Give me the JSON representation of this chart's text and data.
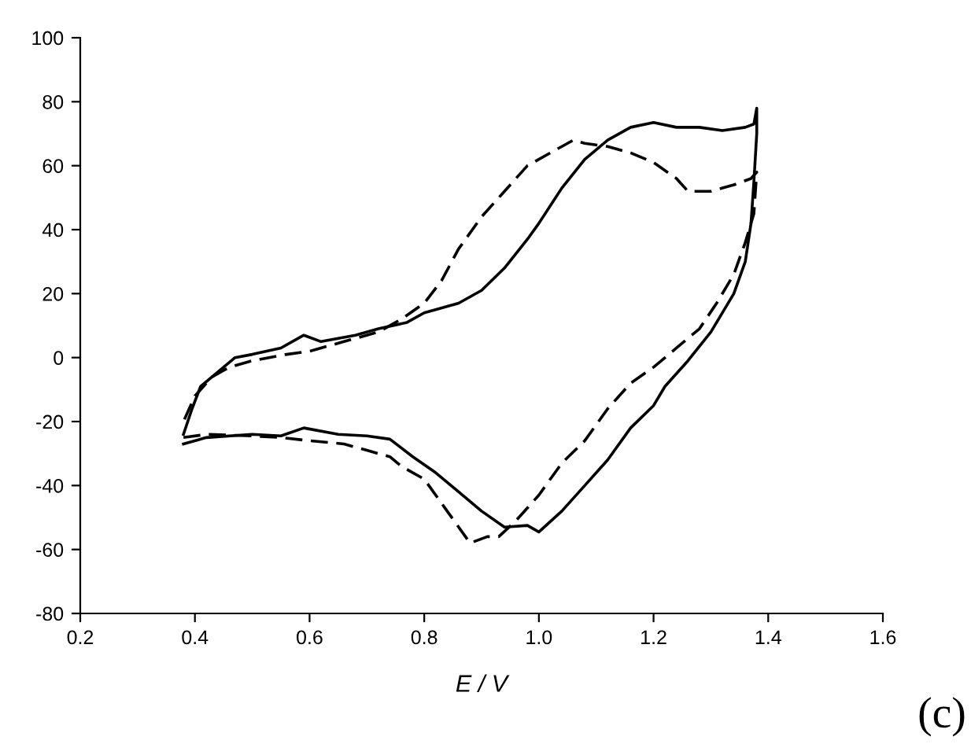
{
  "chart_data": {
    "type": "line",
    "xlabel": "E / V",
    "annotations": [
      "(c)"
    ],
    "xlim": [
      0.2,
      1.6
    ],
    "xticks": [
      0.2,
      0.4,
      0.6,
      0.8,
      {
        "value": 1,
        "label": "1.0"
      },
      1.2,
      1.4,
      1.6
    ],
    "ylim": [
      -80,
      100
    ],
    "yticks": [
      -80,
      -60,
      -40,
      -20,
      0,
      20,
      40,
      60,
      80,
      100
    ],
    "grid": false,
    "series": [
      {
        "color": "#000000",
        "line_style": "solid",
        "x": [
          0.38,
          0.42,
          0.5,
          0.55,
          0.59,
          0.65,
          0.7,
          0.74,
          0.78,
          0.82,
          0.86,
          0.9,
          0.94,
          0.98,
          1.0,
          1.04,
          1.08,
          1.12,
          1.16,
          1.2,
          1.22,
          1.26,
          1.3,
          1.34,
          1.36,
          1.37,
          1.375,
          1.38,
          1.38,
          1.375,
          1.36,
          1.32,
          1.28,
          1.24,
          1.2,
          1.16,
          1.12,
          1.08,
          1.04,
          1.0,
          0.98,
          0.94,
          0.9,
          0.86,
          0.8,
          0.77,
          0.72,
          0.68,
          0.62,
          0.59,
          0.55,
          0.5,
          0.47,
          0.43,
          0.41,
          0.395,
          0.38
        ],
        "values": [
          -27,
          -25,
          -24,
          -24.5,
          -22,
          -24,
          -24.5,
          -25.5,
          -31,
          -36,
          -42,
          -48,
          -53,
          -52.5,
          -54.5,
          -48,
          -40,
          -32,
          -22,
          -15,
          -9,
          -1,
          8,
          20,
          30,
          42,
          55,
          70,
          78,
          73,
          72,
          71,
          72,
          72,
          73.5,
          72,
          68,
          62,
          53,
          42,
          37,
          28,
          21,
          17,
          14,
          11,
          9,
          7,
          5,
          7,
          3,
          1,
          0,
          -6,
          -9,
          -16,
          -24
        ]
      },
      {
        "color": "#000000",
        "line_style": "dashed",
        "x": [
          0.38,
          0.42,
          0.5,
          0.55,
          0.6,
          0.66,
          0.7,
          0.74,
          0.76,
          0.8,
          0.84,
          0.88,
          0.91,
          0.93,
          0.96,
          1.0,
          1.04,
          1.08,
          1.12,
          1.16,
          1.2,
          1.24,
          1.28,
          1.31,
          1.34,
          1.36,
          1.375,
          1.38,
          1.37,
          1.34,
          1.3,
          1.26,
          1.24,
          1.2,
          1.16,
          1.12,
          1.08,
          1.06,
          1.02,
          0.98,
          0.94,
          0.9,
          0.86,
          0.83,
          0.8,
          0.76,
          0.72,
          0.66,
          0.6,
          0.56,
          0.5,
          0.46,
          0.43,
          0.4,
          0.38
        ],
        "values": [
          -25,
          -24,
          -24.5,
          -25,
          -26,
          -27,
          -29,
          -31,
          -34,
          -38,
          -48,
          -58,
          -56,
          -56,
          -51,
          -43,
          -33,
          -26,
          -16,
          -8,
          -3,
          3,
          9,
          17,
          26,
          36,
          45,
          58,
          56,
          54,
          52,
          52,
          56,
          61,
          64,
          66,
          67,
          68,
          64,
          60,
          52,
          44,
          34,
          24,
          17,
          12,
          8,
          5,
          2,
          1,
          -1,
          -3,
          -6,
          -12,
          -20
        ]
      }
    ]
  }
}
